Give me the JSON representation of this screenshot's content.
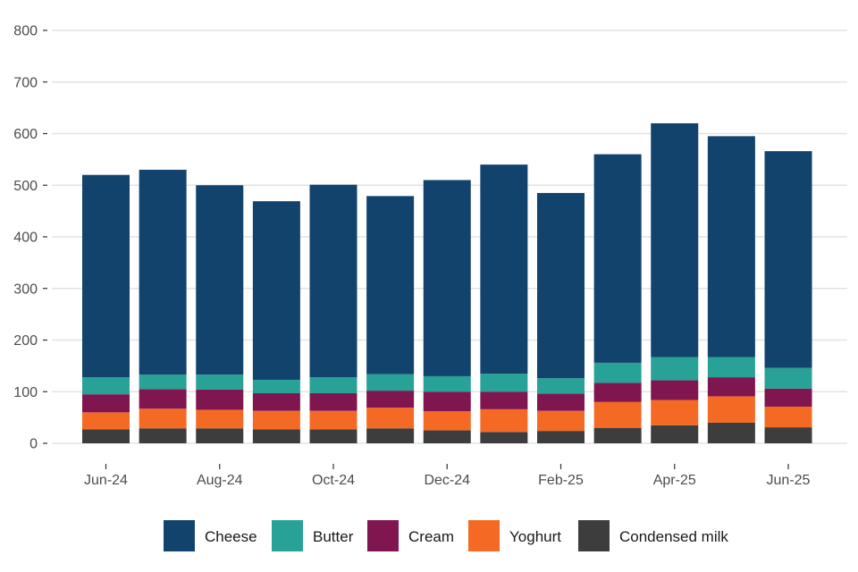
{
  "chart_data": {
    "type": "bar",
    "stacked": true,
    "title": "",
    "xlabel": "",
    "ylabel": "",
    "ylim": [
      0,
      800
    ],
    "yticks": [
      0,
      100,
      200,
      300,
      400,
      500,
      600,
      700,
      800
    ],
    "grid": "horizontal",
    "legend_position": "bottom",
    "categories": [
      "Jun-24",
      "Jul-24",
      "Aug-24",
      "Sep-24",
      "Oct-24",
      "Nov-24",
      "Dec-24",
      "Jan-25",
      "Feb-25",
      "Mar-25",
      "Apr-25",
      "May-25",
      "Jun-25"
    ],
    "tick_labels": [
      "Jun-24",
      "",
      "Aug-24",
      "",
      "Oct-24",
      "",
      "Dec-24",
      "",
      "Feb-25",
      "",
      "Apr-25",
      "",
      "Jun-25"
    ],
    "series": [
      {
        "name": "Condensed milk",
        "color": "#3d3d3d",
        "values": [
          27,
          29,
          29,
          27,
          27,
          29,
          25,
          22,
          24,
          30,
          35,
          40,
          31
        ]
      },
      {
        "name": "Yoghurt",
        "color": "#f46a25",
        "values": [
          33,
          38,
          36,
          36,
          36,
          40,
          37,
          44,
          39,
          50,
          49,
          51,
          40
        ]
      },
      {
        "name": "Cream",
        "color": "#801650",
        "values": [
          35,
          38,
          39,
          34,
          34,
          33,
          38,
          34,
          33,
          37,
          38,
          37,
          35
        ]
      },
      {
        "name": "Butter",
        "color": "#28a197",
        "values": [
          33,
          28,
          29,
          26,
          31,
          32,
          30,
          35,
          30,
          39,
          45,
          39,
          40
        ]
      },
      {
        "name": "Cheese",
        "color": "#12436d",
        "values": [
          392,
          397,
          367,
          346,
          373,
          345,
          380,
          405,
          359,
          404,
          453,
          428,
          420
        ]
      }
    ],
    "legend_order": [
      "Cheese",
      "Butter",
      "Cream",
      "Yoghurt",
      "Condensed milk"
    ]
  }
}
